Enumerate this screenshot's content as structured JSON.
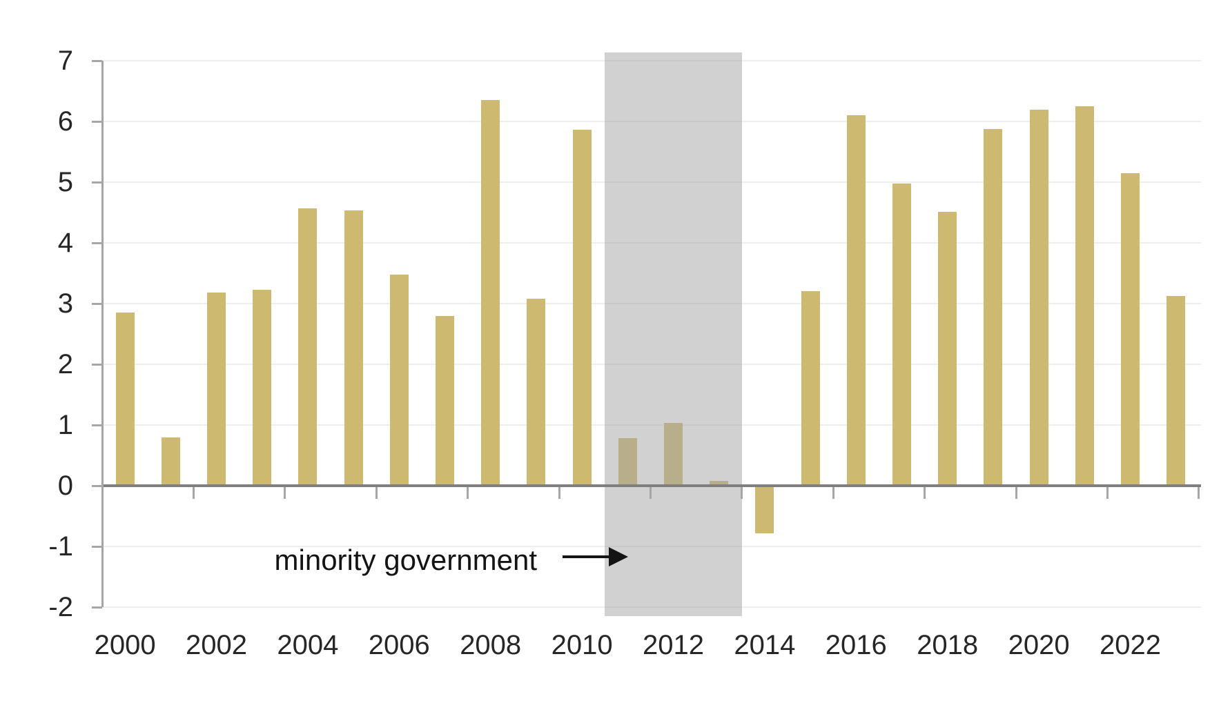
{
  "chart_data": {
    "type": "bar",
    "title": "",
    "xlabel": "",
    "ylabel": "",
    "categories": [
      2000,
      2001,
      2002,
      2003,
      2004,
      2005,
      2006,
      2007,
      2008,
      2009,
      2010,
      2011,
      2012,
      2013,
      2014,
      2015,
      2016,
      2017,
      2018,
      2019,
      2020,
      2021,
      2022,
      2023
    ],
    "values": [
      2.85,
      0.8,
      3.18,
      3.23,
      4.57,
      4.53,
      3.48,
      2.79,
      6.35,
      3.08,
      5.86,
      0.78,
      1.03,
      0.08,
      -0.78,
      3.2,
      6.1,
      4.98,
      4.51,
      5.88,
      6.19,
      6.25,
      5.15,
      3.13
    ],
    "ylim": [
      -2,
      7
    ],
    "y_tick_labels": [
      "-2",
      "-1",
      "0",
      "1",
      "2",
      "3",
      "4",
      "5",
      "6",
      "7"
    ],
    "x_tick_labels": [
      "2000",
      "2002",
      "2004",
      "2006",
      "2008",
      "2010",
      "2012",
      "2014",
      "2016",
      "2018",
      "2020",
      "2022"
    ],
    "grid": true,
    "legend_position": "none",
    "shaded_region": {
      "from_category": 2011,
      "to_category": 2013,
      "label": "minority government"
    },
    "annotation": {
      "text": "minority government",
      "arrow": "right"
    }
  },
  "colors": {
    "bar": "#cdb970",
    "shade_band": "rgba(163,163,163,0.5)",
    "gridline": "#efefef",
    "zero_line": "#7f7f7f",
    "axis": "#a6a6a6",
    "tick_label": "#262626",
    "annotation": "#141414",
    "background": "#ffffff"
  }
}
